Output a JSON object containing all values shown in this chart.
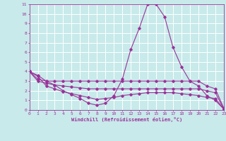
{
  "title": "",
  "xlabel": "Windchill (Refroidissement éolien,°C)",
  "ylabel": "",
  "background_color": "#c8eaea",
  "grid_color": "#ffffff",
  "line_color": "#993399",
  "xmin": 0,
  "xmax": 23,
  "ymin": 0,
  "ymax": 11,
  "xticks": [
    0,
    1,
    2,
    3,
    4,
    5,
    6,
    7,
    8,
    9,
    10,
    11,
    12,
    13,
    14,
    15,
    16,
    17,
    18,
    19,
    20,
    21,
    22,
    23
  ],
  "yticks": [
    0,
    1,
    2,
    3,
    4,
    5,
    6,
    7,
    8,
    9,
    10,
    11
  ],
  "series": [
    {
      "x": [
        0,
        1,
        2,
        3,
        4,
        5,
        6,
        7,
        8,
        9,
        10,
        11,
        12,
        13,
        14,
        15,
        16,
        17,
        18,
        19,
        20,
        21,
        22,
        23
      ],
      "y": [
        4.0,
        3.6,
        3.0,
        2.6,
        2.0,
        1.6,
        1.2,
        0.7,
        0.5,
        0.7,
        1.5,
        3.2,
        6.3,
        8.5,
        11.0,
        11.0,
        9.7,
        6.5,
        4.5,
        3.0,
        2.5,
        1.5,
        1.0,
        0.1
      ]
    },
    {
      "x": [
        0,
        1,
        2,
        3,
        4,
        5,
        6,
        7,
        8,
        9,
        10,
        11,
        12,
        13,
        14,
        15,
        16,
        17,
        18,
        19,
        20,
        21,
        22,
        23
      ],
      "y": [
        4.0,
        3.2,
        3.0,
        3.0,
        3.0,
        3.0,
        3.0,
        3.0,
        3.0,
        3.0,
        3.0,
        3.0,
        3.0,
        3.0,
        3.0,
        3.0,
        3.0,
        3.0,
        3.0,
        3.0,
        3.0,
        2.5,
        2.2,
        0.2
      ]
    },
    {
      "x": [
        0,
        1,
        2,
        3,
        4,
        5,
        6,
        7,
        8,
        9,
        10,
        11,
        12,
        13,
        14,
        15,
        16,
        17,
        18,
        19,
        20,
        21,
        22,
        23
      ],
      "y": [
        4.0,
        3.0,
        2.8,
        2.6,
        2.5,
        2.4,
        2.3,
        2.2,
        2.2,
        2.2,
        2.2,
        2.2,
        2.2,
        2.2,
        2.2,
        2.2,
        2.2,
        2.2,
        2.2,
        2.2,
        2.2,
        2.0,
        1.8,
        0.1
      ]
    },
    {
      "x": [
        0,
        1,
        2,
        3,
        4,
        5,
        6,
        7,
        8,
        9,
        10,
        11,
        12,
        13,
        14,
        15,
        16,
        17,
        18,
        19,
        20,
        21,
        22,
        23
      ],
      "y": [
        4.0,
        3.5,
        2.5,
        2.2,
        1.9,
        1.7,
        1.5,
        1.3,
        1.1,
        1.2,
        1.3,
        1.5,
        1.6,
        1.7,
        1.8,
        1.8,
        1.8,
        1.8,
        1.7,
        1.6,
        1.5,
        1.3,
        1.2,
        0.1
      ]
    }
  ]
}
